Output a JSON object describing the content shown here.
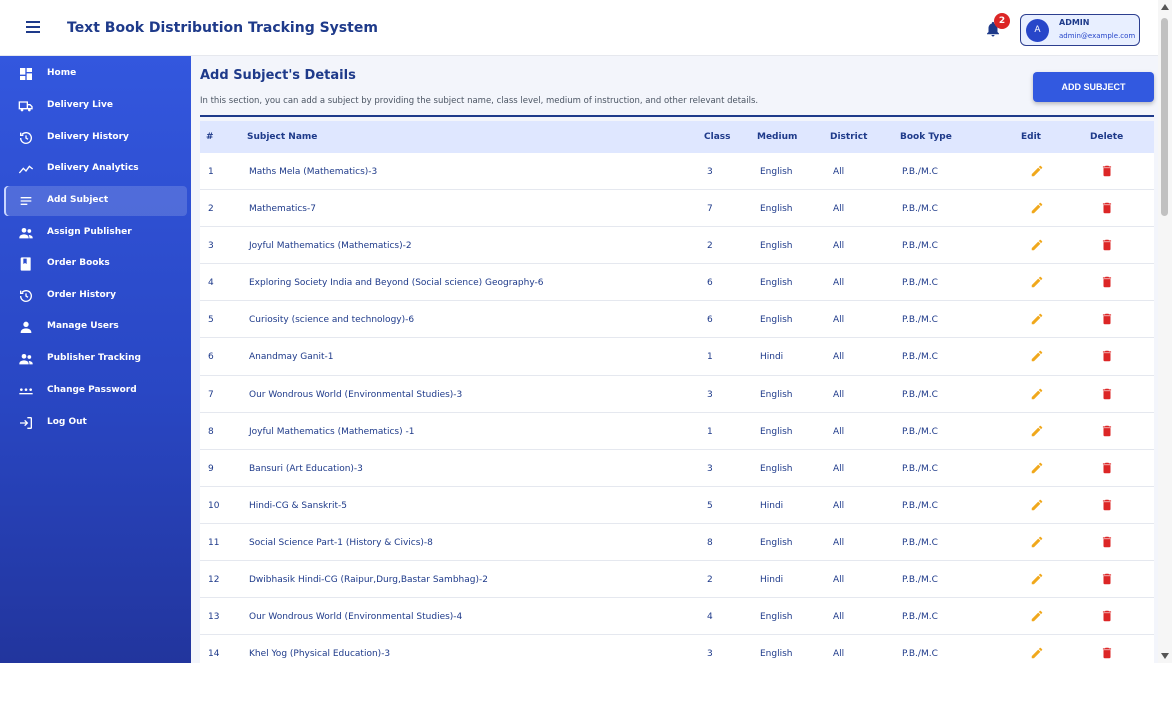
{
  "header": {
    "title": "Text Book Distribution Tracking System",
    "notification_count": "2",
    "user": {
      "avatar_letter": "A",
      "name": "ADMIN",
      "email": "admin@example.com"
    }
  },
  "sidebar": {
    "items": [
      {
        "label": "Home",
        "icon": "dashboard-icon"
      },
      {
        "label": "Delivery Live",
        "icon": "truck-icon"
      },
      {
        "label": "Delivery History",
        "icon": "history-icon"
      },
      {
        "label": "Delivery Analytics",
        "icon": "analytics-icon"
      },
      {
        "label": "Add Subject",
        "icon": "list-icon",
        "active": true
      },
      {
        "label": "Assign Publisher",
        "icon": "people-icon"
      },
      {
        "label": "Order Books",
        "icon": "book-icon"
      },
      {
        "label": "Order History",
        "icon": "history-icon"
      },
      {
        "label": "Manage Users",
        "icon": "person-icon"
      },
      {
        "label": "Publisher Tracking",
        "icon": "people-icon"
      },
      {
        "label": "Change Password",
        "icon": "password-icon"
      },
      {
        "label": "Log Out",
        "icon": "logout-icon"
      }
    ]
  },
  "main": {
    "title": "Add Subject's Details",
    "description": "In this section, you can add a subject by providing the subject name, class level, medium of instruction, and other relevant details.",
    "add_button": "ADD SUBJECT",
    "table": {
      "headers": [
        "#",
        "Subject Name",
        "Class",
        "Medium",
        "District",
        "Book Type",
        "Edit",
        "Delete"
      ],
      "rows": [
        [
          "1",
          "Maths Mela (Mathematics)-3",
          "3",
          "English",
          "All",
          "P.B./M.C"
        ],
        [
          "2",
          "Mathematics-7",
          "7",
          "English",
          "All",
          "P.B./M.C"
        ],
        [
          "3",
          "Joyful Mathematics (Mathematics)-2",
          "2",
          "English",
          "All",
          "P.B./M.C"
        ],
        [
          "4",
          "Exploring Society India and Beyond (Social science) Geography-6",
          "6",
          "English",
          "All",
          "P.B./M.C"
        ],
        [
          "5",
          "Curiosity (science and technology)-6",
          "6",
          "English",
          "All",
          "P.B./M.C"
        ],
        [
          "6",
          "Anandmay Ganit-1",
          "1",
          "Hindi",
          "All",
          "P.B./M.C"
        ],
        [
          "7",
          "Our Wondrous World (Environmental Studies)-3",
          "3",
          "English",
          "All",
          "P.B./M.C"
        ],
        [
          "8",
          "Joyful Mathematics (Mathematics) -1",
          "1",
          "English",
          "All",
          "P.B./M.C"
        ],
        [
          "9",
          "Bansuri (Art Education)-3",
          "3",
          "English",
          "All",
          "P.B./M.C"
        ],
        [
          "10",
          "Hindi-CG & Sanskrit-5",
          "5",
          "Hindi",
          "All",
          "P.B./M.C"
        ],
        [
          "11",
          "Social Science Part-1 (History & Civics)-8",
          "8",
          "English",
          "All",
          "P.B./M.C"
        ],
        [
          "12",
          "Dwibhasik Hindi-CG (Raipur,Durg,Bastar Sambhag)-2",
          "2",
          "Hindi",
          "All",
          "P.B./M.C"
        ],
        [
          "13",
          "Our Wondrous World (Environmental Studies)-4",
          "4",
          "English",
          "All",
          "P.B./M.C"
        ],
        [
          "14",
          "Khel Yog (Physical Education)-3",
          "3",
          "English",
          "All",
          "P.B./M.C"
        ]
      ]
    }
  },
  "colors": {
    "brand": "#1e3a8a",
    "accent": "#3259e0",
    "edit": "#f0a81c",
    "delete": "#dc2626"
  }
}
